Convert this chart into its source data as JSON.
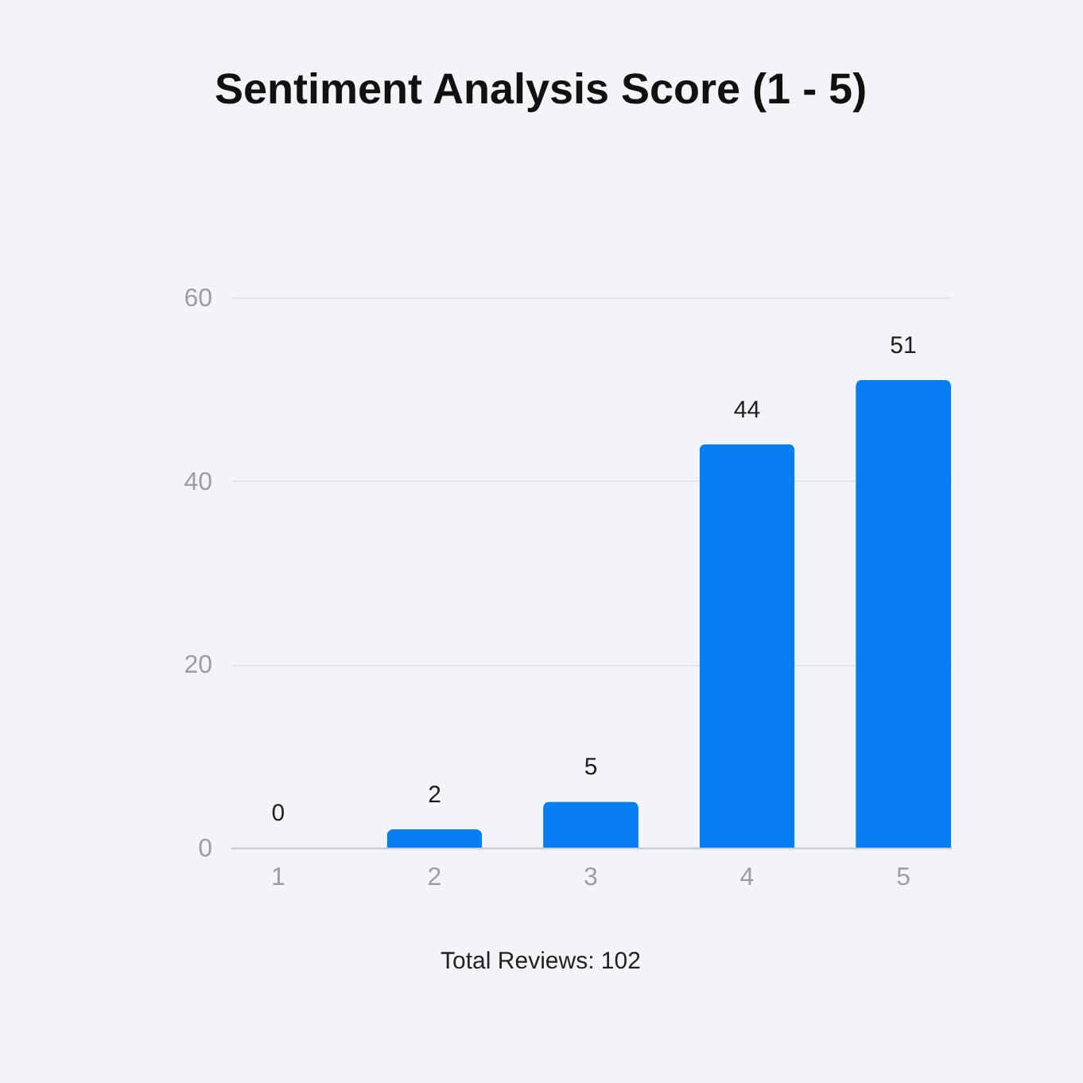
{
  "chart_data": {
    "type": "bar",
    "title": "Sentiment Analysis Score (1 - 5)",
    "categories": [
      "1",
      "2",
      "3",
      "4",
      "5"
    ],
    "values": [
      0,
      2,
      5,
      44,
      51
    ],
    "color": "#077ef2",
    "ylim": [
      0,
      60
    ],
    "yticks": [
      0,
      20,
      40,
      60
    ],
    "grid": "y",
    "data_labels": true,
    "annotations": [
      "Total Reviews: 102"
    ]
  }
}
